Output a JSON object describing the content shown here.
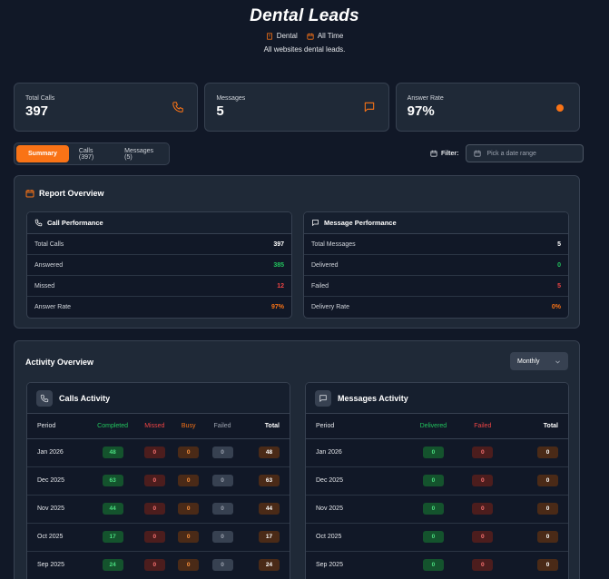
{
  "header": {
    "title": "Dental Leads",
    "tag_category": "Dental",
    "tag_period": "All Time",
    "subtitle": "All websites dental leads."
  },
  "stats": [
    {
      "label": "Total Calls",
      "value": "397",
      "icon": "phone-icon"
    },
    {
      "label": "Messages",
      "value": "5",
      "icon": "message-icon"
    },
    {
      "label": "Answer Rate",
      "value": "97%",
      "icon": "dot-indicator"
    }
  ],
  "tabs": [
    {
      "label": "Summary",
      "active": true
    },
    {
      "label": "Calls (397)",
      "active": false
    },
    {
      "label": "Messages (5)",
      "active": false
    }
  ],
  "filter": {
    "label": "Filter:",
    "placeholder": "Pick a date range"
  },
  "report": {
    "title": "Report Overview",
    "calls": {
      "title": "Call Performance",
      "rows": [
        {
          "label": "Total Calls",
          "value": "397"
        },
        {
          "label": "Answered",
          "value": "385"
        },
        {
          "label": "Missed",
          "value": "12"
        },
        {
          "label": "Answer Rate",
          "value": "97%"
        }
      ]
    },
    "messages": {
      "title": "Message Performance",
      "rows": [
        {
          "label": "Total Messages",
          "value": "5"
        },
        {
          "label": "Delivered",
          "value": "0"
        },
        {
          "label": "Failed",
          "value": "5"
        },
        {
          "label": "Delivery Rate",
          "value": "0%"
        }
      ]
    }
  },
  "activity": {
    "title": "Activity Overview",
    "period_select": "Monthly",
    "calls": {
      "title": "Calls Activity",
      "columns": [
        "Period",
        "Completed",
        "Missed",
        "Busy",
        "Failed",
        "Total"
      ],
      "rows": [
        {
          "period": "Jan 2026",
          "completed": "48",
          "missed": "0",
          "busy": "0",
          "failed": "0",
          "total": "48"
        },
        {
          "period": "Dec 2025",
          "completed": "63",
          "missed": "0",
          "busy": "0",
          "failed": "0",
          "total": "63"
        },
        {
          "period": "Nov 2025",
          "completed": "44",
          "missed": "0",
          "busy": "0",
          "failed": "0",
          "total": "44"
        },
        {
          "period": "Oct 2025",
          "completed": "17",
          "missed": "0",
          "busy": "0",
          "failed": "0",
          "total": "17"
        },
        {
          "period": "Sep 2025",
          "completed": "24",
          "missed": "0",
          "busy": "0",
          "failed": "0",
          "total": "24"
        }
      ]
    },
    "messages": {
      "title": "Messages Activity",
      "columns": [
        "Period",
        "Delivered",
        "Failed",
        "Total"
      ],
      "rows": [
        {
          "period": "Jan 2026",
          "delivered": "0",
          "failed": "0",
          "total": "0"
        },
        {
          "period": "Dec 2025",
          "delivered": "0",
          "failed": "0",
          "total": "0"
        },
        {
          "period": "Nov 2025",
          "delivered": "0",
          "failed": "0",
          "total": "0"
        },
        {
          "period": "Oct 2025",
          "delivered": "0",
          "failed": "0",
          "total": "0"
        },
        {
          "period": "Sep 2025",
          "delivered": "0",
          "failed": "0",
          "total": "0"
        }
      ]
    }
  },
  "colors": {
    "accent": "#f97316",
    "success": "#22c55e",
    "danger": "#ef4444",
    "background": "#111827",
    "card": "#1f2937"
  }
}
